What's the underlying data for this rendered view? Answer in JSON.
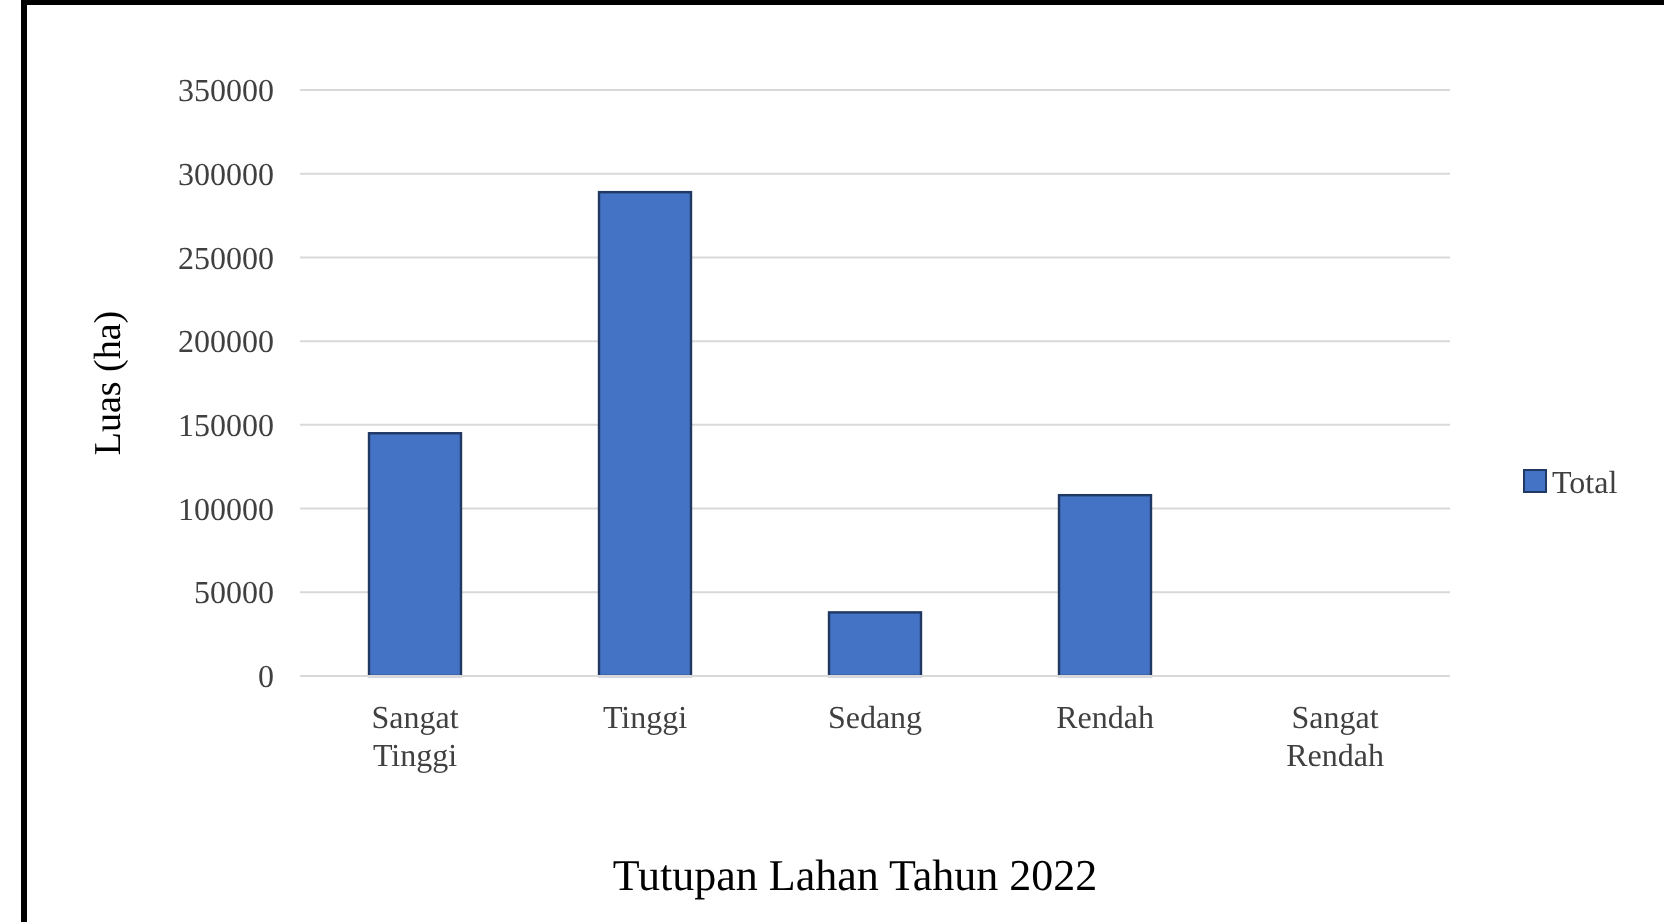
{
  "chart_data": {
    "type": "bar",
    "xlabel": "Tutupan Lahan Tahun 2022",
    "ylabel": "Luas (ha)",
    "categories": [
      "Sangat Tinggi",
      "Tinggi",
      "Sedang",
      "Rendah",
      "Sangat Rendah"
    ],
    "series": [
      {
        "name": "Total",
        "color": "#4472c4",
        "values": [
          145000,
          289000,
          38000,
          108000,
          0
        ]
      }
    ],
    "ylim": [
      0,
      350000
    ],
    "yticks": [
      0,
      50000,
      100000,
      150000,
      200000,
      250000,
      300000,
      350000
    ],
    "grid": "y",
    "legend": "right"
  }
}
